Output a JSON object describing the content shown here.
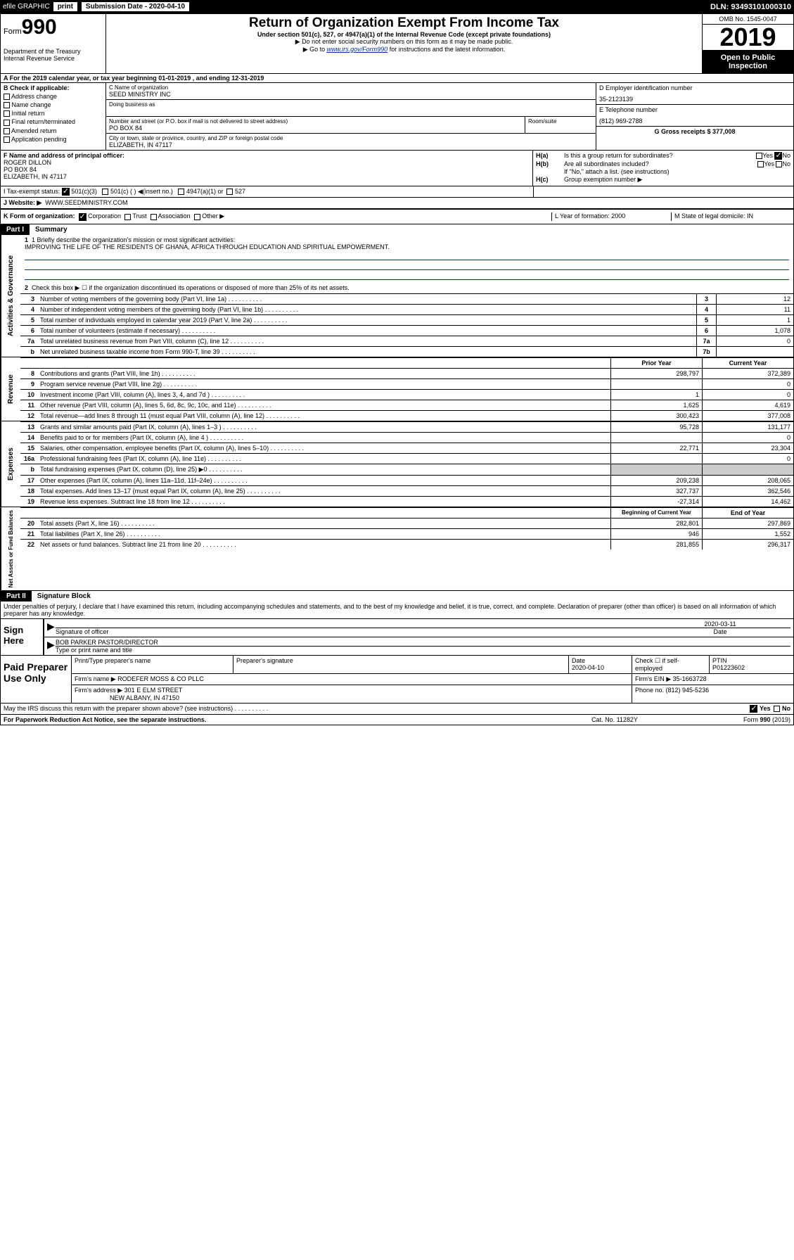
{
  "topbar": {
    "efile": "efile GRAPHIC",
    "print": "print",
    "subdate_lbl": "Submission Date - 2020-04-10",
    "dln": "DLN: 93493101000310"
  },
  "header": {
    "form_prefix": "Form",
    "form_num": "990",
    "dept1": "Department of the Treasury",
    "dept2": "Internal Revenue Service",
    "title": "Return of Organization Exempt From Income Tax",
    "sub1": "Under section 501(c), 527, or 4947(a)(1) of the Internal Revenue Code (except private foundations)",
    "note1": "▶ Do not enter social security numbers on this form as it may be made public.",
    "note2a": "▶ Go to ",
    "note2link": "www.irs.gov/Form990",
    "note2b": " for instructions and the latest information.",
    "omb": "OMB No. 1545-0047",
    "year": "2019",
    "open": "Open to Public Inspection"
  },
  "rowA": "A For the 2019 calendar year, or tax year beginning 01-01-2019    , and ending 12-31-2019",
  "colB": {
    "title": "B Check if applicable:",
    "i1": "Address change",
    "i2": "Name change",
    "i3": "Initial return",
    "i4": "Final return/terminated",
    "i5": "Amended return",
    "i6": "Application pending"
  },
  "colC": {
    "name_lbl": "C Name of organization",
    "name": "SEED MINISTRY INC",
    "dba_lbl": "Doing business as",
    "addr_lbl": "Number and street (or P.O. box if mail is not delivered to street address)",
    "addr": "PO BOX 84",
    "room_lbl": "Room/suite",
    "city_lbl": "City or town, state or province, country, and ZIP or foreign postal code",
    "city": "ELIZABETH, IN  47117"
  },
  "colDE": {
    "d_lbl": "D Employer identification number",
    "d_val": "35-2123139",
    "e_lbl": "E Telephone number",
    "e_val": "(812) 969-2788",
    "g_lbl": "G Gross receipts $ 377,008"
  },
  "colF": {
    "lbl": "F Name and address of principal officer:",
    "name": "ROGER DILLON",
    "addr1": "PO BOX 84",
    "addr2": "ELIZABETH, IN  47117"
  },
  "colH": {
    "ha_lbl": "H(a)",
    "ha_txt": "Is this a group return for subordinates?",
    "hb_lbl": "H(b)",
    "hb_txt": "Are all subordinates included?",
    "hb_note": "If \"No,\" attach a list. (see instructions)",
    "hc_lbl": "H(c)",
    "hc_txt": "Group exemption number ▶",
    "yes": "Yes",
    "no": "No"
  },
  "rowI": {
    "lbl": "I   Tax-exempt status:",
    "o1": "501(c)(3)",
    "o2": "501(c) (  ) ◀(insert no.)",
    "o3": "4947(a)(1) or",
    "o4": "527"
  },
  "rowJ": {
    "lbl": "J   Website: ▶",
    "val": "WWW.SEEDMINISTRY.COM"
  },
  "rowK": {
    "lbl": "K Form of organization:",
    "o1": "Corporation",
    "o2": "Trust",
    "o3": "Association",
    "o4": "Other ▶",
    "l_lbl": "L Year of formation: 2000",
    "m_lbl": "M State of legal domicile: IN"
  },
  "part1": {
    "num": "Part I",
    "title": "Summary"
  },
  "gov": {
    "side": "Activities & Governance",
    "l1": "1  Briefly describe the organization's mission or most significant activities:",
    "l1v": "IMPROVING THE LIFE OF THE RESIDENTS OF GHANA, AFRICA THROUGH EDUCATION AND SPIRITUAL EMPOWERMENT.",
    "l2": "Check this box ▶ ☐  if the organization discontinued its operations or disposed of more than 25% of its net assets.",
    "rows": [
      {
        "n": "3",
        "t": "Number of voting members of the governing body (Part VI, line 1a)",
        "nb": "3",
        "v": "12"
      },
      {
        "n": "4",
        "t": "Number of independent voting members of the governing body (Part VI, line 1b)",
        "nb": "4",
        "v": "11"
      },
      {
        "n": "5",
        "t": "Total number of individuals employed in calendar year 2019 (Part V, line 2a)",
        "nb": "5",
        "v": "1"
      },
      {
        "n": "6",
        "t": "Total number of volunteers (estimate if necessary)",
        "nb": "6",
        "v": "1,078"
      },
      {
        "n": "7a",
        "t": "Total unrelated business revenue from Part VIII, column (C), line 12",
        "nb": "7a",
        "v": "0"
      },
      {
        "n": "b",
        "t": "Net unrelated business taxable income from Form 990-T, line 39",
        "nb": "7b",
        "v": ""
      }
    ]
  },
  "rev": {
    "side": "Revenue",
    "h1": "Prior Year",
    "h2": "Current Year",
    "rows": [
      {
        "n": "8",
        "t": "Contributions and grants (Part VIII, line 1h)",
        "c1": "298,797",
        "c2": "372,389"
      },
      {
        "n": "9",
        "t": "Program service revenue (Part VIII, line 2g)",
        "c1": "",
        "c2": "0"
      },
      {
        "n": "10",
        "t": "Investment income (Part VIII, column (A), lines 3, 4, and 7d )",
        "c1": "1",
        "c2": "0"
      },
      {
        "n": "11",
        "t": "Other revenue (Part VIII, column (A), lines 5, 6d, 8c, 9c, 10c, and 11e)",
        "c1": "1,625",
        "c2": "4,619"
      },
      {
        "n": "12",
        "t": "Total revenue—add lines 8 through 11 (must equal Part VIII, column (A), line 12)",
        "c1": "300,423",
        "c2": "377,008"
      }
    ]
  },
  "exp": {
    "side": "Expenses",
    "rows": [
      {
        "n": "13",
        "t": "Grants and similar amounts paid (Part IX, column (A), lines 1–3 )",
        "c1": "95,728",
        "c2": "131,177"
      },
      {
        "n": "14",
        "t": "Benefits paid to or for members (Part IX, column (A), line 4 )",
        "c1": "",
        "c2": "0"
      },
      {
        "n": "15",
        "t": "Salaries, other compensation, employee benefits (Part IX, column (A), lines 5–10)",
        "c1": "22,771",
        "c2": "23,304"
      },
      {
        "n": "16a",
        "t": "Professional fundraising fees (Part IX, column (A), line 11e)",
        "c1": "",
        "c2": "0"
      },
      {
        "n": "b",
        "t": "Total fundraising expenses (Part IX, column (D), line 25) ▶0",
        "c1": "",
        "c2": "",
        "grey": true
      },
      {
        "n": "17",
        "t": "Other expenses (Part IX, column (A), lines 11a–11d, 11f–24e)",
        "c1": "209,238",
        "c2": "208,065"
      },
      {
        "n": "18",
        "t": "Total expenses. Add lines 13–17 (must equal Part IX, column (A), line 25)",
        "c1": "327,737",
        "c2": "362,546"
      },
      {
        "n": "19",
        "t": "Revenue less expenses. Subtract line 18 from line 12",
        "c1": "-27,314",
        "c2": "14,462"
      }
    ]
  },
  "net": {
    "side": "Net Assets or Fund Balances",
    "h1": "Beginning of Current Year",
    "h2": "End of Year",
    "rows": [
      {
        "n": "20",
        "t": "Total assets (Part X, line 16)",
        "c1": "282,801",
        "c2": "297,869"
      },
      {
        "n": "21",
        "t": "Total liabilities (Part X, line 26)",
        "c1": "946",
        "c2": "1,552"
      },
      {
        "n": "22",
        "t": "Net assets or fund balances. Subtract line 21 from line 20",
        "c1": "281,855",
        "c2": "296,317"
      }
    ]
  },
  "part2": {
    "num": "Part II",
    "title": "Signature Block"
  },
  "perjury": "Under penalties of perjury, I declare that I have examined this return, including accompanying schedules and statements, and to the best of my knowledge and belief, it is true, correct, and complete. Declaration of preparer (other than officer) is based on all information of which preparer has any knowledge.",
  "sign": {
    "lbl": "Sign Here",
    "date": "2020-03-11",
    "date_lbl": "Date",
    "sig_lbl": "Signature of officer",
    "name": "BOB PARKER  PASTOR/DIRECTOR",
    "name_lbl": "Type or print name and title"
  },
  "paid": {
    "lbl": "Paid Preparer Use Only",
    "h1": "Print/Type preparer's name",
    "h2": "Preparer's signature",
    "h3": "Date",
    "h3v": "2020-04-10",
    "h4": "Check ☐ if self-employed",
    "h5": "PTIN",
    "h5v": "P01223602",
    "firm_lbl": "Firm's name    ▶",
    "firm": "RODEFER MOSS & CO PLLC",
    "ein_lbl": "Firm's EIN ▶ 35-1663728",
    "addr_lbl": "Firm's address ▶",
    "addr1": "301 E ELM STREET",
    "addr2": "NEW ALBANY, IN  47150",
    "phone_lbl": "Phone no. (812) 945-5236"
  },
  "discuss": "May the IRS discuss this return with the preparer shown above? (see instructions)",
  "footer": {
    "l": "For Paperwork Reduction Act Notice, see the separate instructions.",
    "m": "Cat. No. 11282Y",
    "r": "Form 990 (2019)"
  }
}
